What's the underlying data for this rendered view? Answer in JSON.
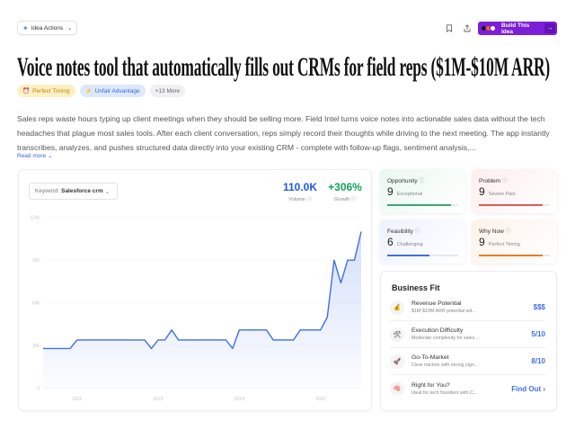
{
  "header": {
    "idea_actions_label": "Idea Actions",
    "bookmark_icon": "bookmark-icon",
    "share_icon": "share-icon",
    "build_label": "Build This Idea",
    "build_color": "#7b1fd8"
  },
  "title": "Voice notes tool that automatically fills out CRMs for field reps ($1M-$10M ARR)",
  "tags": [
    {
      "icon": "⏰",
      "label": "Perfect Timing"
    },
    {
      "icon": "⚡",
      "label": "Unfair Advantage"
    },
    {
      "icon": "",
      "label": "+13 More"
    }
  ],
  "description": "Sales reps waste hours typing up client meetings when they should be selling more. Field Intel turns voice notes into actionable sales data without the tech headaches that plague most sales tools. After each client conversation, reps simply record their thoughts while driving to the next meeting. The app instantly transcribes, analyzes, and pushes structured data directly into your existing CRM - complete with follow-up flags, sentiment analysis,...",
  "read_more": "Read more",
  "trend": {
    "keyword_label": "Keyword:",
    "keyword_value": "Salesforce crm",
    "volume_value": "110.0K",
    "volume_label": "Volume",
    "growth_value": "+306%",
    "growth_label": "Growth",
    "volume_color": "#2456e6",
    "growth_color": "#16a05a"
  },
  "chart_data": {
    "type": "area",
    "ylim": [
      0,
      120000
    ],
    "yticks": [
      "0",
      "30k",
      "60k",
      "90k",
      "120k"
    ],
    "ytick_values": [
      0,
      30000,
      60000,
      90000,
      120000
    ],
    "xticks": [
      "2022",
      "2023",
      "2024",
      "2025"
    ],
    "grid": true,
    "line_color": "#3f6fe8",
    "x": [
      "2021-08",
      "2021-09",
      "2021-10",
      "2021-11",
      "2021-12",
      "2022-01",
      "2022-02",
      "2022-03",
      "2022-04",
      "2022-05",
      "2022-06",
      "2022-07",
      "2022-08",
      "2022-09",
      "2022-10",
      "2022-11",
      "2022-12",
      "2023-01",
      "2023-02",
      "2023-03",
      "2023-04",
      "2023-05",
      "2023-06",
      "2023-07",
      "2023-08",
      "2023-09",
      "2023-10",
      "2023-11",
      "2023-12",
      "2024-01",
      "2024-02",
      "2024-03",
      "2024-04",
      "2024-05",
      "2024-06",
      "2024-07",
      "2024-08",
      "2024-09",
      "2024-10",
      "2024-11",
      "2024-12",
      "2025-01",
      "2025-02",
      "2025-03",
      "2025-04",
      "2025-05",
      "2025-06",
      "2025-07"
    ],
    "values": [
      28000,
      28000,
      28000,
      28000,
      28000,
      34000,
      34000,
      34000,
      34000,
      34000,
      34000,
      34000,
      34000,
      34000,
      34000,
      34000,
      28000,
      34000,
      34000,
      41000,
      34000,
      34000,
      34000,
      34000,
      34000,
      34000,
      34000,
      34000,
      28000,
      41000,
      41000,
      41000,
      41000,
      41000,
      34000,
      34000,
      34000,
      34000,
      41000,
      41000,
      41000,
      41000,
      50000,
      90000,
      74000,
      90000,
      90000,
      110000
    ]
  },
  "scores": [
    {
      "title": "Opportunity",
      "score": "9",
      "label": "Exceptional",
      "level": 0.9,
      "color": "#3aa872",
      "bg": "#eaf8f0"
    },
    {
      "title": "Problem",
      "score": "9",
      "label": "Severe Pain",
      "level": 0.9,
      "color": "#e05a5a",
      "bg": "#fdeeee"
    },
    {
      "title": "Feasibility",
      "score": "6",
      "label": "Challenging",
      "level": 0.6,
      "color": "#3f6fe8",
      "bg": "#edf2fd"
    },
    {
      "title": "Why Now",
      "score": "9",
      "label": "Perfect Timing",
      "level": 0.9,
      "color": "#f07a24",
      "bg": "#fdf2ea"
    }
  ],
  "business_fit": {
    "title": "Business Fit",
    "rows": [
      {
        "icon": "💰",
        "label": "Revenue Potential",
        "sub": "$1M-$10M ARR potential wit...",
        "value": "$$$"
      },
      {
        "icon": "🛠",
        "label": "Execution Difficulty",
        "sub": "Moderate complexity for sales ...",
        "value": "5/10"
      },
      {
        "icon": "🚀",
        "label": "Go-To-Market",
        "sub": "Clear traction with strong sign...",
        "value": "8/10"
      },
      {
        "icon": "🧠",
        "label": "Right for You?",
        "sub": "Ideal for tech founders with C...",
        "value": "Find Out ›"
      }
    ]
  }
}
